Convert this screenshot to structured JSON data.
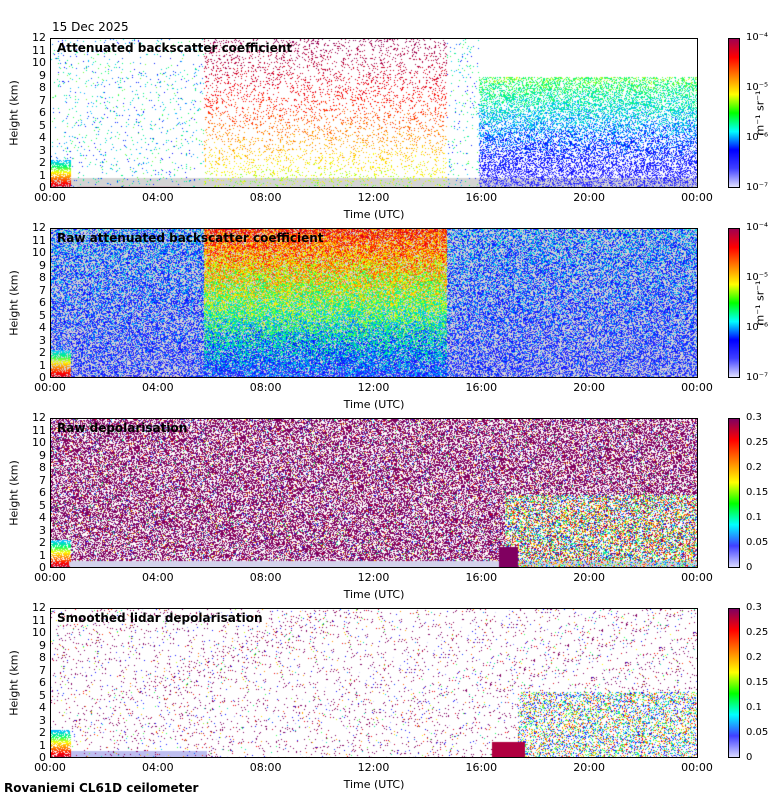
{
  "date": "15 Dec 2025",
  "footer": "Rovaniemi CL61D ceilometer",
  "colors": {
    "rainbow": [
      "#d8d8ff",
      "#3b3bff",
      "#0000ff",
      "#00c8ff",
      "#00ff66",
      "#ffff00",
      "#ff8000",
      "#ff0000",
      "#b00040",
      "#800060"
    ],
    "background_gray": "#d4d4d4"
  },
  "chart_data": [
    {
      "type": "heatmap",
      "title": "Attenuated backscatter coefficient",
      "xlabel": "Time (UTC)",
      "ylabel": "Height (km)",
      "xticks": [
        "00:00",
        "04:00",
        "08:00",
        "12:00",
        "16:00",
        "20:00",
        "00:00"
      ],
      "yticks": [
        0,
        1,
        2,
        3,
        4,
        5,
        6,
        7,
        8,
        9,
        10,
        11,
        12
      ],
      "ylim": [
        0,
        12
      ],
      "colorbar": {
        "scale": "log",
        "ticks": [
          "10⁻⁷",
          "10⁻⁶",
          "10⁻⁵",
          "10⁻⁴"
        ],
        "unit": "m⁻¹ sr⁻¹"
      }
    },
    {
      "type": "heatmap",
      "title": "Raw attenuated backscatter coefficient",
      "xlabel": "Time (UTC)",
      "ylabel": "Height (km)",
      "xticks": [
        "00:00",
        "04:00",
        "08:00",
        "12:00",
        "16:00",
        "20:00",
        "00:00"
      ],
      "yticks": [
        0,
        1,
        2,
        3,
        4,
        5,
        6,
        7,
        8,
        9,
        10,
        11,
        12
      ],
      "ylim": [
        0,
        12
      ],
      "colorbar": {
        "scale": "log",
        "ticks": [
          "10⁻⁷",
          "10⁻⁶",
          "10⁻⁵",
          "10⁻⁴"
        ],
        "unit": "m⁻¹ sr⁻¹"
      }
    },
    {
      "type": "heatmap",
      "title": "Raw depolarisation",
      "xlabel": "Time (UTC)",
      "ylabel": "Height (km)",
      "xticks": [
        "00:00",
        "04:00",
        "08:00",
        "12:00",
        "16:00",
        "20:00",
        "00:00"
      ],
      "yticks": [
        0,
        1,
        2,
        3,
        4,
        5,
        6,
        7,
        8,
        9,
        10,
        11,
        12
      ],
      "ylim": [
        0,
        12
      ],
      "colorbar": {
        "scale": "linear",
        "ticks": [
          "0",
          "0.05",
          "0.1",
          "0.15",
          "0.2",
          "0.25",
          "0.3"
        ],
        "unit": ""
      }
    },
    {
      "type": "heatmap",
      "title": "Smoothed lidar depolarisation",
      "xlabel": "Time (UTC)",
      "ylabel": "Height (km)",
      "xticks": [
        "00:00",
        "04:00",
        "08:00",
        "12:00",
        "16:00",
        "20:00",
        "00:00"
      ],
      "yticks": [
        0,
        1,
        2,
        3,
        4,
        5,
        6,
        7,
        8,
        9,
        10,
        11,
        12
      ],
      "ylim": [
        0,
        12
      ],
      "colorbar": {
        "scale": "linear",
        "ticks": [
          "0",
          "0.05",
          "0.1",
          "0.15",
          "0.2",
          "0.25",
          "0.3"
        ],
        "unit": ""
      }
    }
  ]
}
